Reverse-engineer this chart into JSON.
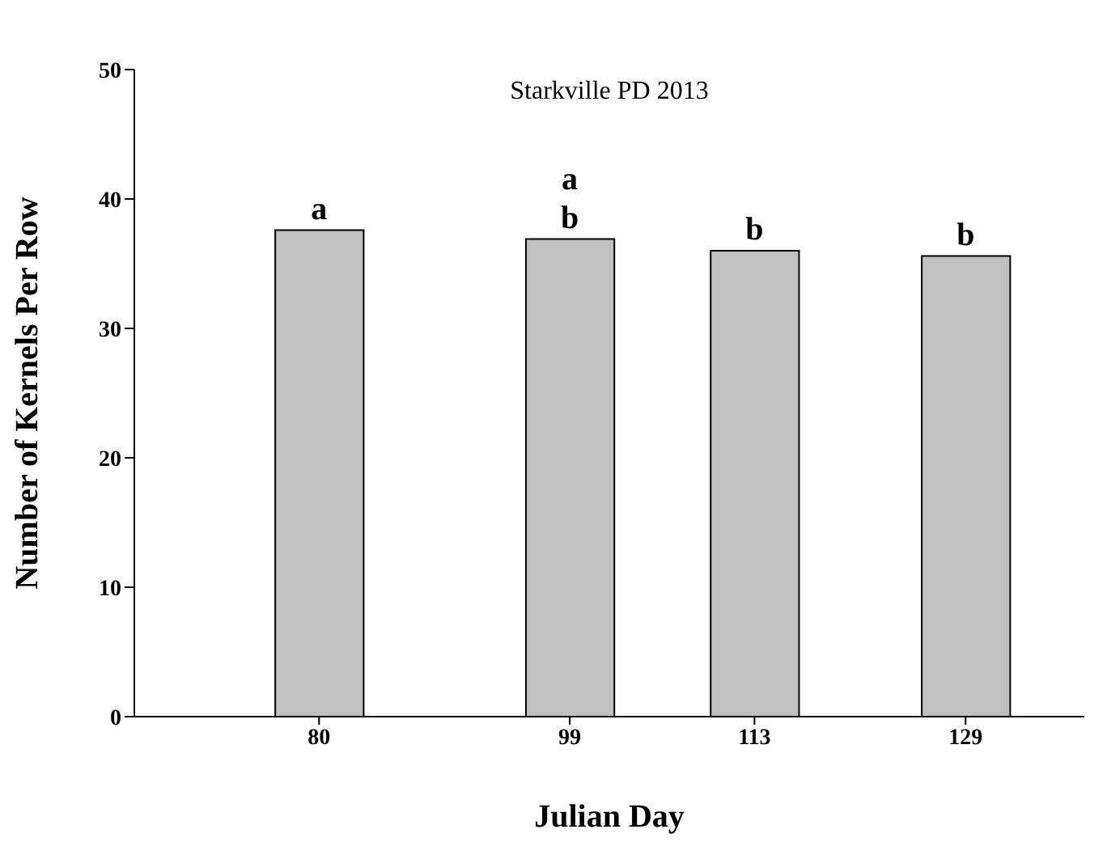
{
  "chart_data": {
    "type": "bar",
    "title": "Starkville PD 2013",
    "xlabel": "Julian Day",
    "ylabel": "Number of Kernels Per Row",
    "x": [
      80,
      99,
      113,
      129
    ],
    "values": [
      37.6,
      36.9,
      36.0,
      35.6
    ],
    "color": "#c0c0c0",
    "xlim": [
      66,
      138
    ],
    "xticks": [
      80,
      99,
      113,
      129
    ],
    "ylim": [
      0,
      50
    ],
    "yticks": [
      0,
      10,
      20,
      30,
      40,
      50
    ],
    "grid": false,
    "legend": false,
    "annotations": [
      {
        "text": "a",
        "x": 80,
        "y": 37.6
      },
      {
        "text": "a",
        "x": 99,
        "y": 36.9
      },
      {
        "text": "b",
        "x": 99,
        "y": 36.9
      },
      {
        "text": "b",
        "x": 113,
        "y": 36.0
      },
      {
        "text": "b",
        "x": 129,
        "y": 35.6
      }
    ]
  }
}
